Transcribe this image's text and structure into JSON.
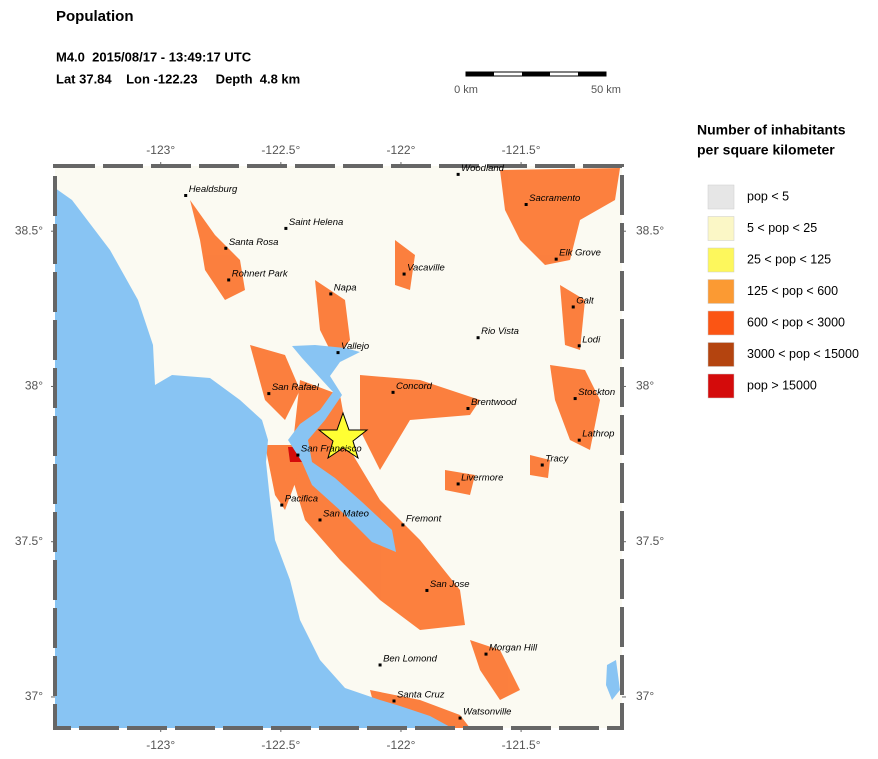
{
  "title": "Population",
  "event": {
    "line1": "M4.0  2015/08/17 - 13:49:17 UTC",
    "line2": "Lat 37.84    Lon -122.23     Depth  4.8 km"
  },
  "scale_bar": {
    "start": "0 km",
    "end": "50 km"
  },
  "map": {
    "xlim": [
      -123.44,
      -121.08
    ],
    "ylim": [
      36.9,
      38.71
    ],
    "xticks": [
      {
        "value": -123,
        "label": "-123°"
      },
      {
        "value": -122.5,
        "label": "-122.5°"
      },
      {
        "value": -122,
        "label": "-122°"
      },
      {
        "value": -121.5,
        "label": "-121.5°"
      }
    ],
    "yticks": [
      {
        "value": 37,
        "label": "37°"
      },
      {
        "value": 37.5,
        "label": "37.5°"
      },
      {
        "value": 38,
        "label": "38°"
      },
      {
        "value": 38.5,
        "label": "38.5°"
      }
    ],
    "cities": [
      {
        "name": "Woodland",
        "lon": -121.762,
        "lat": 38.683
      },
      {
        "name": "Sacramento",
        "lon": -121.479,
        "lat": 38.586
      },
      {
        "name": "Healdsburg",
        "lon": -122.896,
        "lat": 38.615
      },
      {
        "name": "Saint Helena",
        "lon": -122.479,
        "lat": 38.509
      },
      {
        "name": "Santa Rosa",
        "lon": -122.729,
        "lat": 38.445
      },
      {
        "name": "Elk Grove",
        "lon": -121.354,
        "lat": 38.41
      },
      {
        "name": "Rohnert Park",
        "lon": -122.717,
        "lat": 38.343
      },
      {
        "name": "Vacaville",
        "lon": -121.987,
        "lat": 38.362
      },
      {
        "name": "Napa",
        "lon": -122.292,
        "lat": 38.298
      },
      {
        "name": "Galt",
        "lon": -121.283,
        "lat": 38.256
      },
      {
        "name": "Rio Vista",
        "lon": -121.679,
        "lat": 38.157
      },
      {
        "name": "Lodi",
        "lon": -121.258,
        "lat": 38.131
      },
      {
        "name": "Vallejo",
        "lon": -122.262,
        "lat": 38.109
      },
      {
        "name": "San Rafael",
        "lon": -122.55,
        "lat": 37.977
      },
      {
        "name": "Concord",
        "lon": -122.033,
        "lat": 37.981
      },
      {
        "name": "Stockton",
        "lon": -121.275,
        "lat": 37.961
      },
      {
        "name": "Brentwood",
        "lon": -121.721,
        "lat": 37.929
      },
      {
        "name": "Lathrop",
        "lon": -121.258,
        "lat": 37.827
      },
      {
        "name": "San Francisco",
        "lon": -122.429,
        "lat": 37.779
      },
      {
        "name": "Tracy",
        "lon": -121.412,
        "lat": 37.747
      },
      {
        "name": "Livermore",
        "lon": -121.762,
        "lat": 37.686
      },
      {
        "name": "Pacifica",
        "lon": -122.496,
        "lat": 37.618
      },
      {
        "name": "San Mateo",
        "lon": -122.337,
        "lat": 37.57
      },
      {
        "name": "Fremont",
        "lon": -121.992,
        "lat": 37.554
      },
      {
        "name": "San Jose",
        "lon": -121.892,
        "lat": 37.343
      },
      {
        "name": "Morgan Hill",
        "lon": -121.646,
        "lat": 37.138
      },
      {
        "name": "Ben Lomond",
        "lon": -122.087,
        "lat": 37.103
      },
      {
        "name": "Santa Cruz",
        "lon": -122.029,
        "lat": 36.987
      },
      {
        "name": "Watsonville",
        "lon": -121.754,
        "lat": 36.932
      }
    ]
  },
  "legend": {
    "title_line1": "Number of inhabitants",
    "title_line2": "per square kilometer",
    "entries": [
      {
        "label": "pop < 5",
        "color": "#e6e6e6"
      },
      {
        "label": "5 < pop < 25",
        "color": "#fbf7c6"
      },
      {
        "label": "25 < pop < 125",
        "color": "#fdf75c"
      },
      {
        "label": "125 < pop < 600",
        "color": "#fb9a33"
      },
      {
        "label": "600 < pop < 3000",
        "color": "#fb5514"
      },
      {
        "label": "3000 < pop < 15000",
        "color": "#b4440f"
      },
      {
        "label": "pop > 15000",
        "color": "#d40b0b"
      }
    ]
  }
}
